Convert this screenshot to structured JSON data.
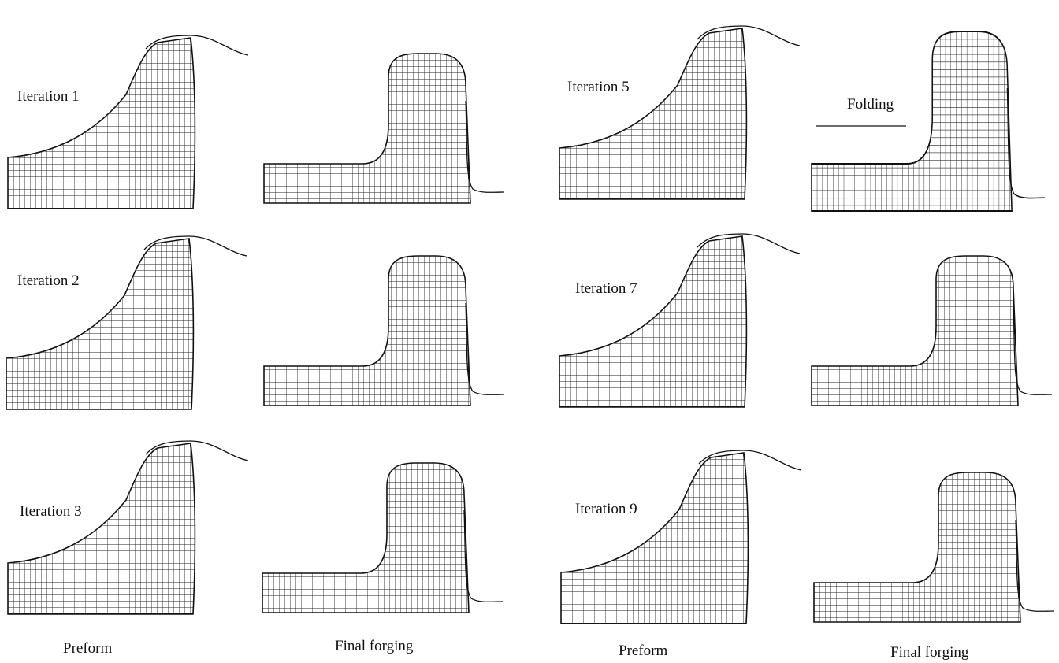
{
  "iterations": [
    "Iteration 1",
    "Iteration 2",
    "Iteration 3",
    "Iteration 5",
    "Iteration 7",
    "Iteration 9"
  ],
  "folding_label": "Folding",
  "column_captions": [
    "Preform",
    "Final forging",
    "Preform",
    "Final forging"
  ]
}
